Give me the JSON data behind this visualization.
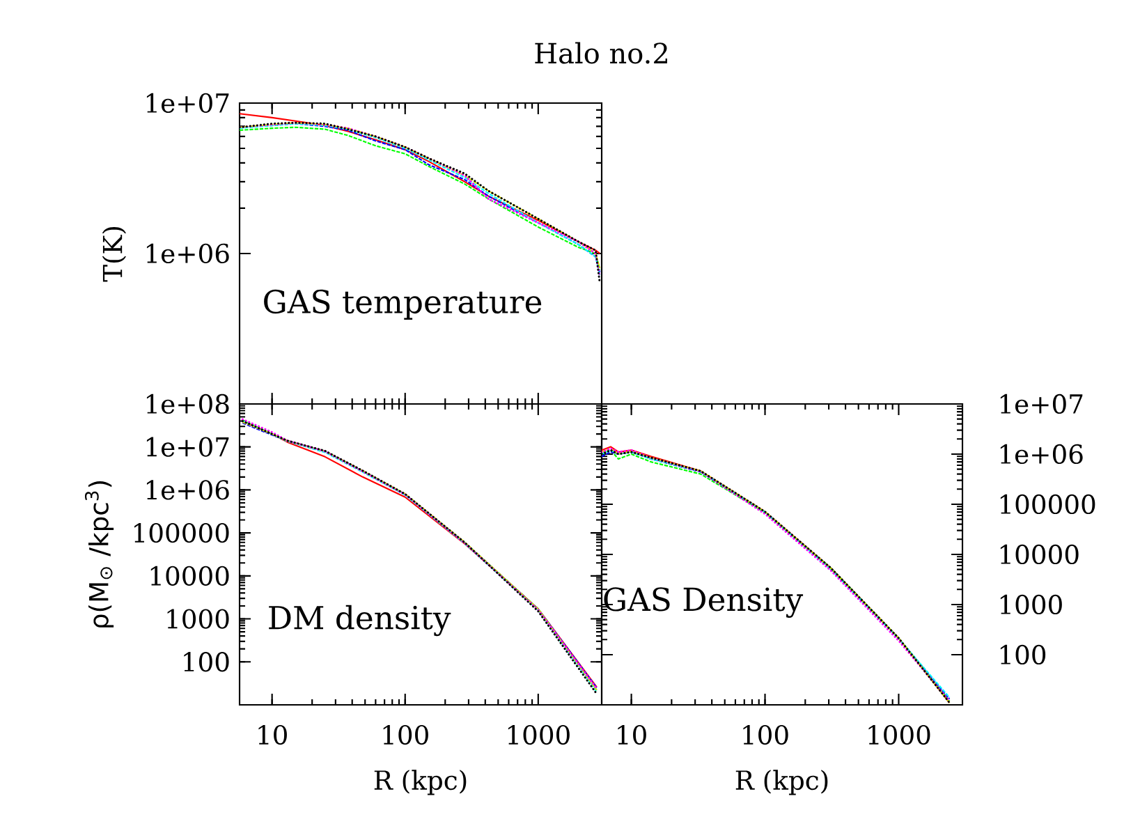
{
  "chart_data": [
    {
      "type": "line",
      "title": "Halo no.2",
      "ylabel": "T(K)",
      "annotations": [
        "GAS temperature"
      ],
      "log": "xy",
      "grid": false,
      "marker": "none",
      "tick_labels": "y",
      "xlim": [
        5.7,
        3000
      ],
      "xticks": [
        10,
        100,
        1000
      ],
      "ylim": [
        100000,
        10000000
      ],
      "yticks": [
        {
          "value": 1000000,
          "label": "1e+06"
        },
        {
          "value": 10000000,
          "label": "1e+07"
        }
      ],
      "x": [
        5.7,
        10,
        15,
        25,
        37,
        60,
        100,
        150,
        280,
        425,
        1000,
        2000,
        2700,
        2900
      ],
      "series": [
        {
          "color": "#ff0000",
          "line_style": "solid",
          "values": [
            8500000,
            8000000,
            7600000,
            7100000,
            6500000,
            5700000,
            4900000,
            4100000,
            3000000,
            2400000,
            1660000,
            1200000,
            1050000,
            1000000
          ]
        },
        {
          "color": "#00ff00",
          "line_style": "dashed",
          "values": [
            6600000,
            6800000,
            6900000,
            6700000,
            6100000,
            5200000,
            4600000,
            3800000,
            2900000,
            2300000,
            1500000,
            1100000,
            1000000,
            780000
          ]
        },
        {
          "color": "#0000ff",
          "line_style": "dashed",
          "values": [
            6900000,
            7100000,
            7300000,
            7000000,
            6600000,
            5600000,
            4900000,
            3900000,
            3100000,
            2400000,
            1600000,
            1150000,
            950000,
            750000
          ]
        },
        {
          "color": "#ff00ff",
          "line_style": "dotted",
          "values": [
            6900000,
            7200000,
            7400000,
            7200000,
            6800000,
            6000000,
            5100000,
            4300000,
            3300000,
            2300000,
            1600000,
            1200000,
            1000000,
            700000
          ]
        },
        {
          "color": "#00ffff",
          "line_style": "dashed",
          "values": [
            6800000,
            7100000,
            7300000,
            7100000,
            6700000,
            5900000,
            5000000,
            4200000,
            3200000,
            2500000,
            1600000,
            1150000,
            950000,
            720000
          ]
        },
        {
          "color": "#e0e000",
          "line_style": "dashed",
          "values": [
            6900000,
            7200000,
            7400000,
            7200000,
            6800000,
            6000000,
            5100000,
            4300000,
            3300000,
            2600000,
            1700000,
            1200000,
            1000000,
            800000
          ]
        },
        {
          "color": "#000000",
          "line_style": "dotted",
          "values": [
            6900000,
            7300000,
            7400000,
            7300000,
            6700000,
            6000000,
            5100000,
            4300000,
            3400000,
            2600000,
            1700000,
            1200000,
            1050000,
            640000
          ]
        }
      ]
    },
    {
      "type": "line",
      "xlabel": "R (kpc)",
      "ylabel": "ρ(M$_{⊙}$ /kpc$^{3}$)",
      "annotations": [
        "DM density"
      ],
      "log": "xy",
      "grid": false,
      "marker": "none",
      "xlim": [
        5.7,
        3000
      ],
      "xticks": [
        10,
        100,
        1000
      ],
      "ylim": [
        10,
        100000000
      ],
      "yticks": [
        {
          "value": 100,
          "label": "100"
        },
        {
          "value": 1000,
          "label": "1000"
        },
        {
          "value": 10000,
          "label": "10000"
        },
        {
          "value": 100000,
          "label": "100000"
        },
        {
          "value": 1000000,
          "label": "1e+06"
        },
        {
          "value": 10000000,
          "label": "1e+07"
        },
        {
          "value": 100000000,
          "label": "1e+08"
        }
      ],
      "x": [
        6,
        10,
        13,
        25,
        48,
        100,
        280,
        1000,
        2750
      ],
      "series": [
        {
          "color": "#ff0000",
          "line_style": "solid",
          "values": [
            40000000,
            20000000,
            13000000,
            5900000,
            2000000,
            680000,
            56000,
            1700,
            26
          ]
        },
        {
          "color": "#00ff00",
          "line_style": "dashed",
          "values": [
            42000000,
            20000000,
            14000000,
            7800000,
            2700000,
            790000,
            60000,
            1700,
            22
          ]
        },
        {
          "color": "#0000ff",
          "line_style": "dashed",
          "values": [
            36000000,
            19000000,
            14000000,
            8000000,
            2800000,
            800000,
            60000,
            1700,
            25
          ]
        },
        {
          "color": "#ff00ff",
          "line_style": "dotted",
          "values": [
            44000000,
            22000000,
            14000000,
            7900000,
            2700000,
            780000,
            58000,
            1600,
            24
          ]
        },
        {
          "color": "#00ffff",
          "line_style": "dashed",
          "values": [
            40000000,
            20000000,
            13500000,
            7500000,
            2600000,
            760000,
            57000,
            1600,
            20
          ]
        },
        {
          "color": "#e0e000",
          "line_style": "dashed",
          "values": [
            38000000,
            20000000,
            14000000,
            8000000,
            2800000,
            810000,
            61000,
            1700,
            22
          ]
        },
        {
          "color": "#000000",
          "line_style": "dotted",
          "values": [
            40000000,
            20000000,
            14000000,
            8100000,
            2800000,
            800000,
            60000,
            1500,
            18
          ]
        }
      ]
    },
    {
      "type": "line",
      "xlabel": "R (kpc)",
      "annotations": [
        "GAS Density"
      ],
      "log": "xy",
      "grid": false,
      "marker": "none",
      "xlim": [
        6,
        3000
      ],
      "xticks": [
        10,
        100,
        1000
      ],
      "ylim": [
        10,
        10000000
      ],
      "yticks": [
        {
          "value": 100,
          "label": "100"
        },
        {
          "value": 1000,
          "label": "1000"
        },
        {
          "value": 10000,
          "label": "10000"
        },
        {
          "value": 100000,
          "label": "100000"
        },
        {
          "value": 1000000,
          "label": "1e+06"
        },
        {
          "value": 10000000,
          "label": "1e+07"
        }
      ],
      "x": [
        6,
        7,
        8,
        10,
        14,
        33,
        100,
        310,
        1000,
        2400
      ],
      "series": [
        {
          "color": "#ff0000",
          "line_style": "solid",
          "values": [
            1200000,
            1400000,
            1100000,
            1200000,
            900000,
            460000,
            71000,
            5400,
            214,
            11
          ]
        },
        {
          "color": "#00ff00",
          "line_style": "dashed",
          "values": [
            1000000,
            1200000,
            800000,
            1000000,
            700000,
            400000,
            68000,
            5400,
            214,
            12
          ]
        },
        {
          "color": "#0000ff",
          "line_style": "dashed",
          "values": [
            900000,
            1100000,
            1000000,
            1100000,
            800000,
            440000,
            70000,
            5200,
            210,
            13
          ]
        },
        {
          "color": "#ff00ff",
          "line_style": "dotted",
          "values": [
            1100000,
            1300000,
            1100000,
            1200000,
            850000,
            450000,
            64000,
            4800,
            190,
            12
          ]
        },
        {
          "color": "#00ffff",
          "line_style": "dashed",
          "values": [
            1000000,
            1200000,
            1000000,
            1100000,
            800000,
            450000,
            70000,
            5000,
            210,
            14
          ]
        },
        {
          "color": "#e0e000",
          "line_style": "dashed",
          "values": [
            1100000,
            1300000,
            1000000,
            1150000,
            850000,
            460000,
            71000,
            5300,
            214,
            11
          ]
        },
        {
          "color": "#000000",
          "line_style": "dotted",
          "values": [
            1000000,
            1200000,
            1000000,
            1100000,
            850000,
            460000,
            71000,
            5400,
            214,
            11
          ]
        }
      ]
    }
  ]
}
